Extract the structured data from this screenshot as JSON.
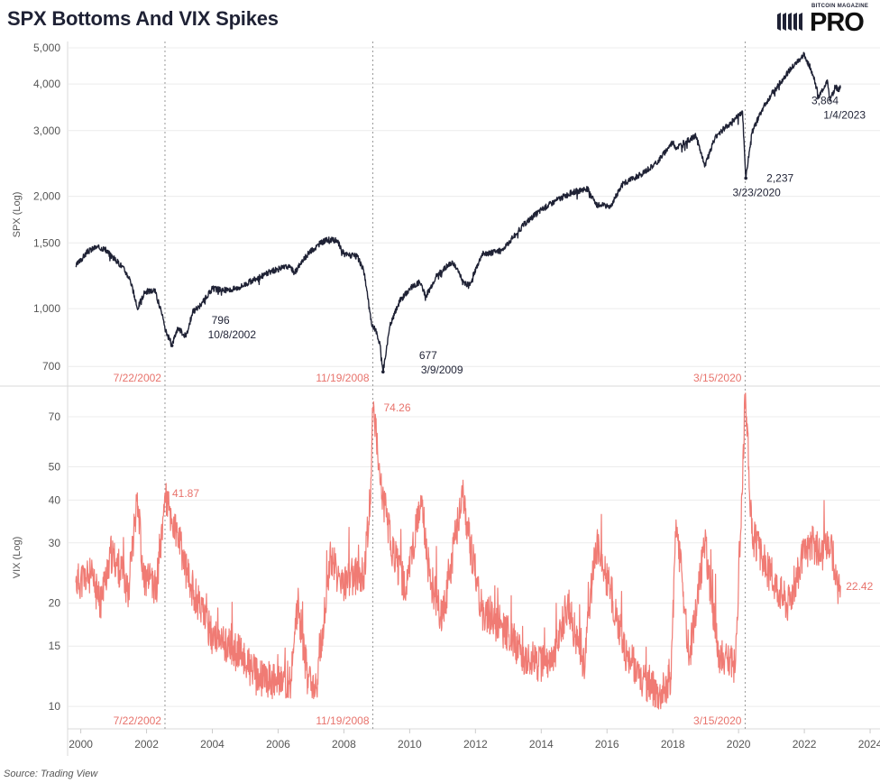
{
  "title": "SPX Bottoms And VIX Spikes",
  "logo": {
    "top_text": "BITCOIN MAGAZINE",
    "word": "PRO"
  },
  "source": "Source: Trading View",
  "colors": {
    "spx": "#1f2235",
    "vix": "#f07b74",
    "event_label": "#e8736c",
    "grid": "#ececec"
  },
  "chart_data": [
    {
      "type": "line",
      "ylabel": "SPX (Log)",
      "scale": "log",
      "ylim": [
        620,
        5200
      ],
      "xlim": [
        1999.6,
        2024.3
      ],
      "yticks": [
        700,
        1000,
        1500,
        2000,
        3000,
        4000,
        5000
      ],
      "ytick_labels": [
        "700",
        "1,000",
        "1,500",
        "2,000",
        "3,000",
        "4,000",
        "5,000"
      ],
      "grid": true,
      "series": [
        {
          "x": [
            1999.85,
            2000.2,
            2000.45,
            2000.7,
            2000.95,
            2001.25,
            2001.5,
            2001.72,
            2001.95,
            2002.25,
            2002.45,
            2002.56,
            2002.77,
            2002.95,
            2003.2,
            2003.4,
            2003.6,
            2004.0,
            2004.5,
            2004.8,
            2005.3,
            2005.8,
            2006.3,
            2006.5,
            2006.9,
            2007.3,
            2007.5,
            2007.8,
            2008.0,
            2008.4,
            2008.6,
            2008.85,
            2008.95,
            2009.1,
            2009.19,
            2009.4,
            2009.7,
            2010.0,
            2010.3,
            2010.5,
            2010.8,
            2011.3,
            2011.6,
            2011.8,
            2012.2,
            2012.8,
            2013.5,
            2014.0,
            2014.5,
            2014.95,
            2015.4,
            2015.65,
            2016.1,
            2016.5,
            2017.0,
            2017.5,
            2018.0,
            2018.1,
            2018.7,
            2018.98,
            2019.3,
            2019.9,
            2020.12,
            2020.22,
            2020.4,
            2020.7,
            2021.0,
            2021.5,
            2021.99,
            2022.2,
            2022.45,
            2022.7,
            2022.78,
            2022.95,
            2023.01,
            2023.1
          ],
          "y": [
            1300,
            1420,
            1460,
            1450,
            1380,
            1300,
            1200,
            1000,
            1110,
            1120,
            980,
            880,
            800,
            890,
            840,
            980,
            1010,
            1130,
            1120,
            1140,
            1200,
            1260,
            1300,
            1250,
            1400,
            1500,
            1530,
            1520,
            1400,
            1380,
            1270,
            900,
            880,
            800,
            677,
            900,
            1050,
            1130,
            1180,
            1080,
            1220,
            1340,
            1200,
            1150,
            1400,
            1430,
            1690,
            1840,
            1960,
            2050,
            2100,
            1900,
            1880,
            2170,
            2280,
            2450,
            2800,
            2700,
            2900,
            2420,
            2900,
            3230,
            3380,
            2237,
            2950,
            3400,
            3750,
            4300,
            4790,
            4400,
            3700,
            4100,
            3600,
            3950,
            3864,
            3900
          ]
        }
      ],
      "annotations": [
        {
          "value": "796",
          "date": "10/8/2002"
        },
        {
          "value": "677",
          "date": "3/9/2009"
        },
        {
          "value": "2,237",
          "date": "3/23/2020"
        },
        {
          "value": "3,864",
          "date": "1/4/2023"
        }
      ],
      "event_labels": [
        "7/22/2002",
        "11/19/2008",
        "3/15/2020"
      ]
    },
    {
      "type": "line",
      "ylabel": "VIX (Log)",
      "scale": "log",
      "ylim": [
        8.6,
        86
      ],
      "xlim": [
        1999.6,
        2024.3
      ],
      "yticks": [
        10,
        15,
        20,
        30,
        40,
        50,
        70
      ],
      "ytick_labels": [
        "10",
        "15",
        "20",
        "30",
        "40",
        "50",
        "70"
      ],
      "grid": true,
      "x_ticks": [
        2000,
        2002,
        2004,
        2006,
        2008,
        2010,
        2012,
        2014,
        2016,
        2018,
        2020,
        2022,
        2024
      ],
      "x_tick_labels": [
        "2000",
        "2002",
        "2004",
        "2006",
        "2008",
        "2010",
        "2012",
        "2014",
        "2016",
        "2018",
        "2020",
        "2022",
        "2024"
      ],
      "series": [
        {
          "x": [
            1999.85,
            2000.3,
            2000.6,
            2000.9,
            2001.2,
            2001.45,
            2001.72,
            2001.9,
            2002.3,
            2002.56,
            2002.75,
            2003.0,
            2003.3,
            2003.6,
            2004.0,
            2004.5,
            2004.9,
            2005.4,
            2005.9,
            2006.4,
            2006.6,
            2006.9,
            2007.2,
            2007.6,
            2007.9,
            2008.2,
            2008.6,
            2008.8,
            2008.88,
            2009.1,
            2009.5,
            2009.9,
            2010.35,
            2010.6,
            2011.0,
            2011.6,
            2011.75,
            2012.2,
            2012.8,
            2013.5,
            2014.3,
            2014.8,
            2015.3,
            2015.65,
            2016.1,
            2016.6,
            2017.1,
            2017.6,
            2017.95,
            2018.1,
            2018.5,
            2018.98,
            2019.4,
            2019.9,
            2020.21,
            2020.4,
            2020.7,
            2021.0,
            2021.5,
            2021.95,
            2022.2,
            2022.5,
            2022.8,
            2023.01,
            2023.1
          ],
          "y": [
            23,
            24,
            20,
            28,
            25,
            22,
            42,
            24,
            22,
            41.87,
            35,
            30,
            23,
            20,
            16,
            15,
            14,
            12,
            12,
            12,
            20,
            12,
            12,
            28,
            22,
            24,
            24,
            40,
            74.26,
            45,
            28,
            22,
            40,
            24,
            18,
            42,
            33,
            19,
            17,
            14,
            13,
            20,
            13,
            30,
            22,
            14,
            12,
            11,
            12,
            35,
            14,
            30,
            14,
            13,
            82,
            32,
            27,
            24,
            20,
            27,
            30,
            28,
            30,
            22.42,
            22.5
          ]
        }
      ],
      "annotations": [
        {
          "value": "41.87"
        },
        {
          "value": "74.26"
        },
        {
          "value": "22.42"
        }
      ],
      "event_labels": [
        "7/22/2002",
        "11/19/2008",
        "3/15/2020"
      ]
    }
  ]
}
